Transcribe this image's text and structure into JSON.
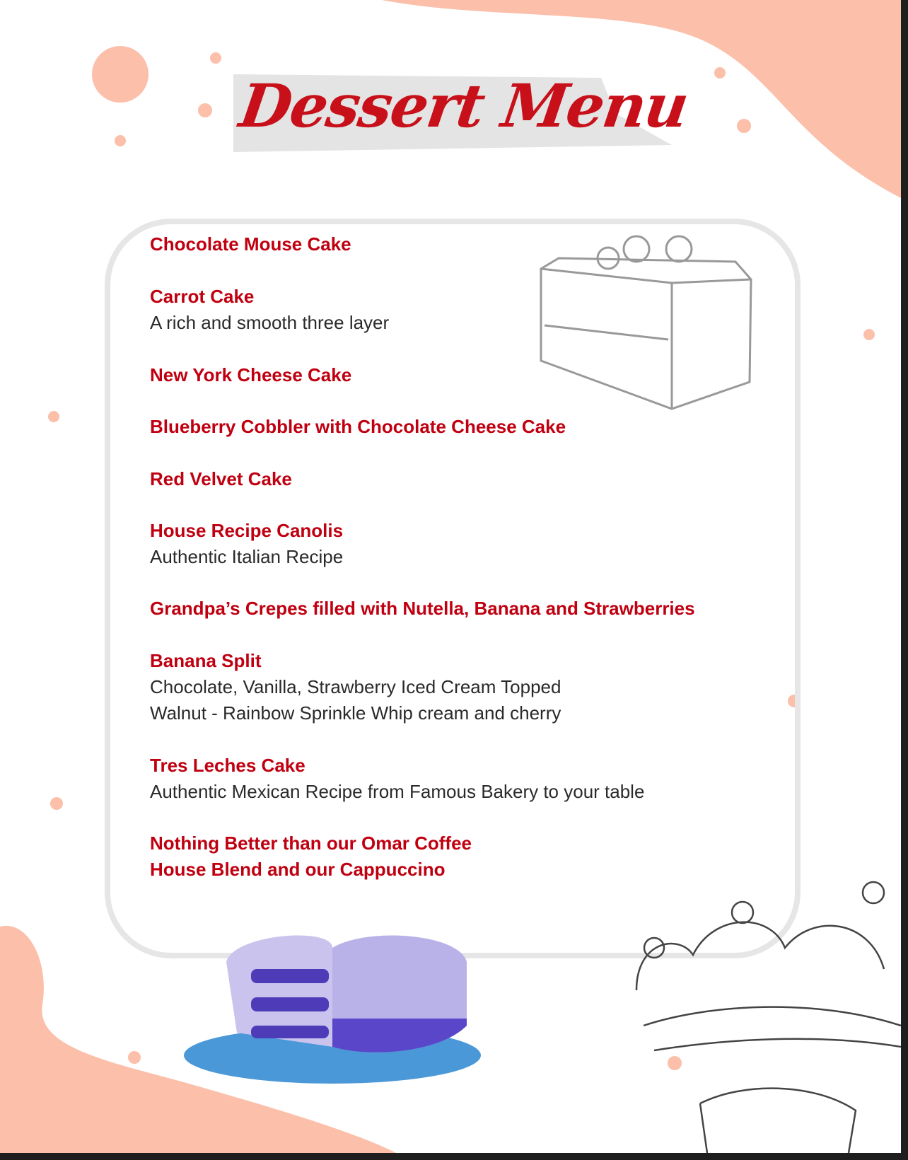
{
  "title": "Dessert Menu",
  "colors": {
    "accent": "#c00010",
    "peach": "#fbbfaa",
    "frame": "#e6e6e6"
  },
  "items": [
    {
      "name": "Chocolate Mouse Cake",
      "desc": []
    },
    {
      "name": "Carrot Cake",
      "desc": [
        "A rich and smooth three layer"
      ]
    },
    {
      "name": "New York Cheese Cake",
      "desc": []
    },
    {
      "name": "Blueberry Cobbler with Chocolate Cheese Cake",
      "desc": []
    },
    {
      "name": "Red Velvet Cake",
      "desc": []
    },
    {
      "name": "House Recipe Canolis",
      "desc": [
        "Authentic Italian Recipe"
      ]
    },
    {
      "name": "Grandpa’s Crepes filled with Nutella, Banana and Strawberries",
      "desc": []
    },
    {
      "name": "Banana Split",
      "desc": [
        "Chocolate, Vanilla, Strawberry Iced Cream Topped",
        "Walnut - Rainbow Sprinkle Whip cream and cherry"
      ]
    },
    {
      "name": "Tres Leches Cake",
      "desc": [
        "Authentic Mexican Recipe from Famous Bakery to your table"
      ]
    },
    {
      "name": "Nothing Better than our Omar Coffee",
      "desc": []
    },
    {
      "name": "House Blend and our Cappuccino",
      "desc": []
    }
  ],
  "illustrations": [
    "cake-slice-sketch-icon",
    "layer-cake-icon",
    "banana-split-sketch-icon"
  ]
}
